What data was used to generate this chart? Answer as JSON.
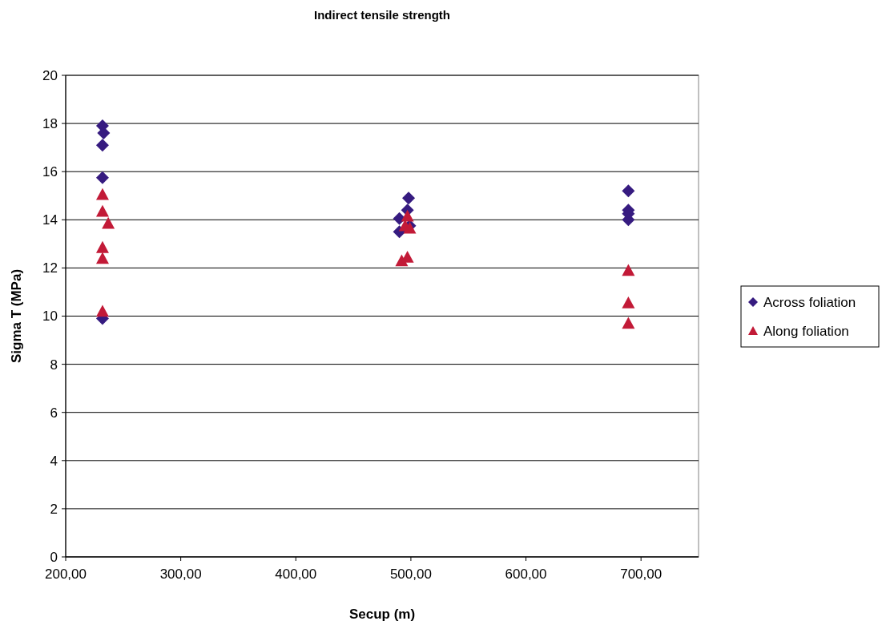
{
  "chart_data": {
    "type": "scatter",
    "title": "Indirect tensile strength",
    "xlabel": "Secup (m)",
    "ylabel": "Sigma T (MPa)",
    "xlim": [
      200,
      750
    ],
    "xticks": [
      {
        "value": 200,
        "label": "200,00"
      },
      {
        "value": 300,
        "label": "300,00"
      },
      {
        "value": 400,
        "label": "400,00"
      },
      {
        "value": 500,
        "label": "500,00"
      },
      {
        "value": 600,
        "label": "600,00"
      },
      {
        "value": 700,
        "label": "700,00"
      }
    ],
    "ylim": [
      0,
      20
    ],
    "yticks": [
      0,
      2,
      4,
      6,
      8,
      10,
      12,
      14,
      16,
      18,
      20
    ],
    "grid": "y",
    "legend": "right",
    "series": [
      {
        "name": "Across foliation",
        "color": "#361b80",
        "marker": "diamond",
        "x": [
          232,
          233,
          232,
          232,
          232,
          498,
          497,
          490,
          499,
          490,
          689,
          689,
          689,
          689
        ],
        "values": [
          17.9,
          17.6,
          17.1,
          15.75,
          9.9,
          14.9,
          14.4,
          14.05,
          13.75,
          13.5,
          15.2,
          14.4,
          14.25,
          14.0
        ]
      },
      {
        "name": "Along foliation",
        "color": "#c21a37",
        "marker": "triangle",
        "x": [
          232,
          232,
          237,
          232,
          232,
          232,
          497,
          495,
          499,
          492,
          497,
          689,
          689,
          689
        ],
        "values": [
          15.05,
          14.35,
          13.85,
          12.85,
          12.4,
          10.2,
          14.15,
          13.75,
          13.65,
          12.3,
          12.45,
          11.9,
          10.55,
          9.7
        ]
      }
    ]
  }
}
